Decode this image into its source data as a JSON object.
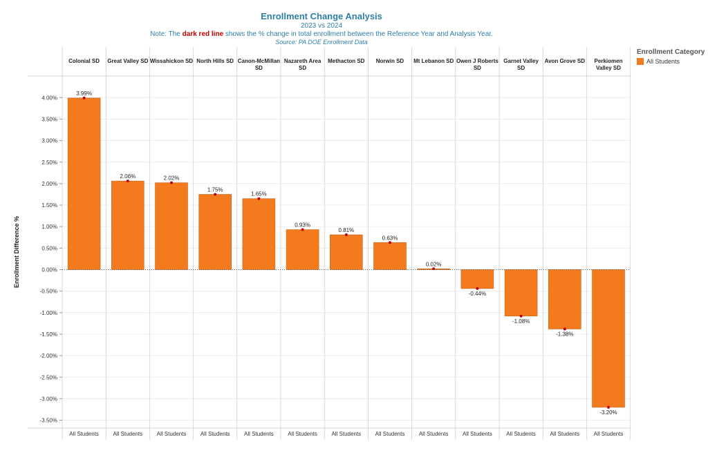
{
  "header": {
    "title": "Enrollment Change Analysis",
    "subtitle": "2023 vs 2024",
    "note_prefix": "Note: The ",
    "note_highlight": "dark red line",
    "note_suffix": " shows the % change in total enrollment between the Reference Year and Analysis Year.",
    "source": "Source: PA DOE Enrollment Data"
  },
  "legend": {
    "title": "Enrollment Category",
    "item": "All Students"
  },
  "colors": {
    "bar": "#f37b1d",
    "bar_stroke": "#c8641a",
    "marker": "#c00000",
    "title": "#2e7ea6"
  },
  "chart_data": {
    "type": "bar",
    "ylabel": "Enrollment Difference %",
    "ylim": [
      -3.7,
      4.4
    ],
    "yticks": [
      4.0,
      3.5,
      3.0,
      2.5,
      2.0,
      1.5,
      1.0,
      0.5,
      0.0,
      -0.5,
      -1.0,
      -1.5,
      -2.0,
      -2.5,
      -3.0,
      -3.5
    ],
    "category_label": "All Students",
    "categories": [
      "Colonial SD",
      "Great Valley SD",
      "Wissahickon SD",
      "North Hills SD",
      "Canon-McMillan SD",
      "Nazareth Area SD",
      "Methacton SD",
      "Norwin SD",
      "Mt Lebanon SD",
      "Owen J Roberts SD",
      "Garnet Valley SD",
      "Avon Grove SD",
      "Perkiomen Valley SD"
    ],
    "header_lines": [
      [
        "Colonial SD"
      ],
      [
        "Great Valley SD"
      ],
      [
        "Wissahickon SD"
      ],
      [
        "North Hills SD"
      ],
      [
        "Canon-McMillan",
        "SD"
      ],
      [
        "Nazareth Area",
        "SD"
      ],
      [
        "Methacton SD"
      ],
      [
        "Norwin SD"
      ],
      [
        "Mt Lebanon SD"
      ],
      [
        "Owen J Roberts",
        "SD"
      ],
      [
        "Garnet Valley",
        "SD"
      ],
      [
        "Avon Grove SD"
      ],
      [
        "Perkiomen",
        "Valley SD"
      ]
    ],
    "values": [
      3.99,
      2.06,
      2.02,
      1.75,
      1.65,
      0.93,
      0.81,
      0.63,
      0.02,
      -0.44,
      -1.08,
      -1.38,
      -3.2
    ],
    "labels": [
      "3.99%",
      "2.06%",
      "2.02%",
      "1.75%",
      "1.65%",
      "0.93%",
      "0.81%",
      "0.63%",
      "0.02%",
      "-0.44%",
      "-1.08%",
      "-1.38%",
      "-3.20%"
    ],
    "grid": true,
    "legend_position": "top-right"
  }
}
